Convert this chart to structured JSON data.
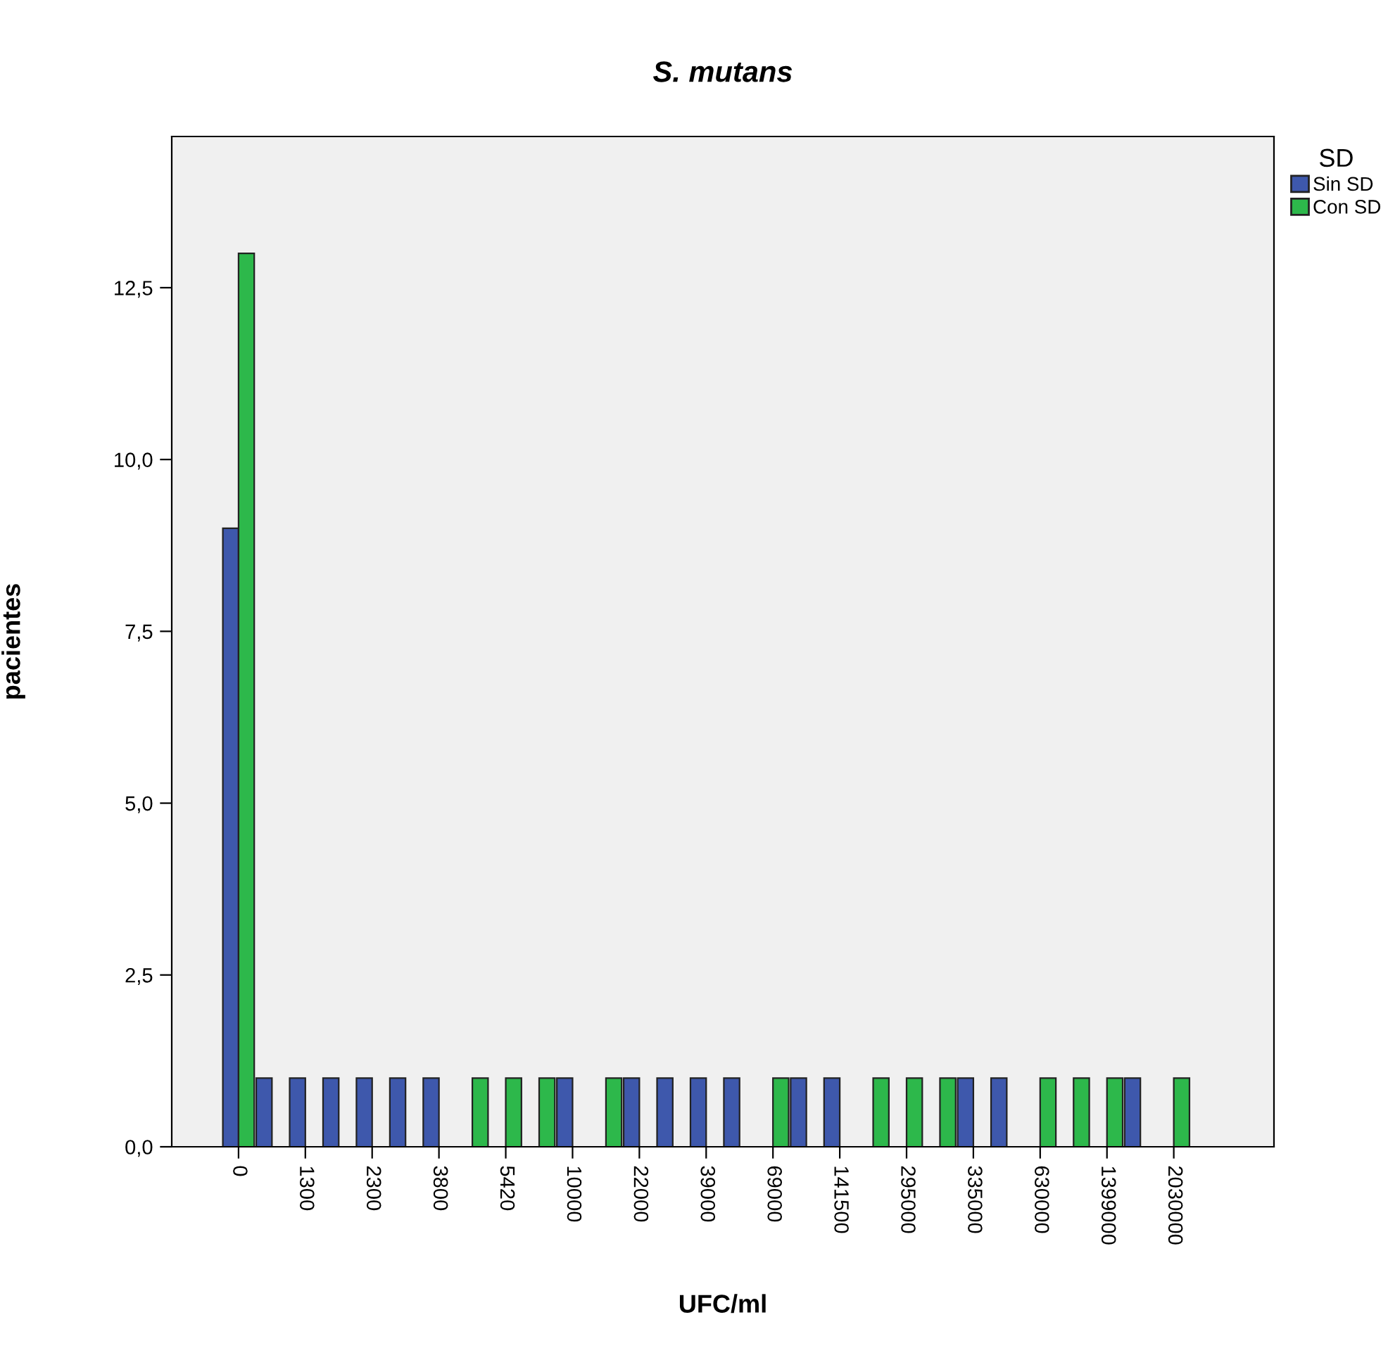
{
  "chart_data": {
    "type": "bar",
    "title": "S. mutans",
    "xlabel": "UFC/ml",
    "ylabel": "pacientes",
    "legend_title": "SD",
    "categories": [
      "0",
      null,
      "1300",
      null,
      "2300",
      null,
      "3800",
      null,
      "5420",
      null,
      "10000",
      null,
      "22000",
      null,
      "39000",
      null,
      "69000",
      null,
      "141500",
      null,
      "295000",
      null,
      "335000",
      null,
      "630000",
      null,
      "1399000",
      null,
      "2030000"
    ],
    "series": [
      {
        "name": "Sin SD",
        "color": "#3e58ac",
        "values": [
          9,
          1,
          1,
          1,
          1,
          1,
          1,
          null,
          null,
          null,
          1,
          null,
          1,
          1,
          1,
          1,
          null,
          1,
          1,
          null,
          null,
          null,
          1,
          1,
          null,
          null,
          null,
          1,
          null
        ]
      },
      {
        "name": "Con SD",
        "color": "#2db84b",
        "values": [
          13,
          null,
          null,
          null,
          null,
          null,
          null,
          1,
          1,
          1,
          null,
          1,
          null,
          null,
          null,
          null,
          1,
          null,
          null,
          1,
          1,
          1,
          null,
          null,
          1,
          1,
          1,
          null,
          1
        ]
      }
    ],
    "ylim": [
      0,
      14.7
    ],
    "yticks": [
      {
        "value": 0,
        "label": "0,0"
      },
      {
        "value": 2.5,
        "label": "2,5"
      },
      {
        "value": 5,
        "label": "5,0"
      },
      {
        "value": 7.5,
        "label": "7,5"
      },
      {
        "value": 10,
        "label": "10,0"
      },
      {
        "value": 12.5,
        "label": "12,5"
      }
    ],
    "grid": false,
    "legend": "top right"
  }
}
